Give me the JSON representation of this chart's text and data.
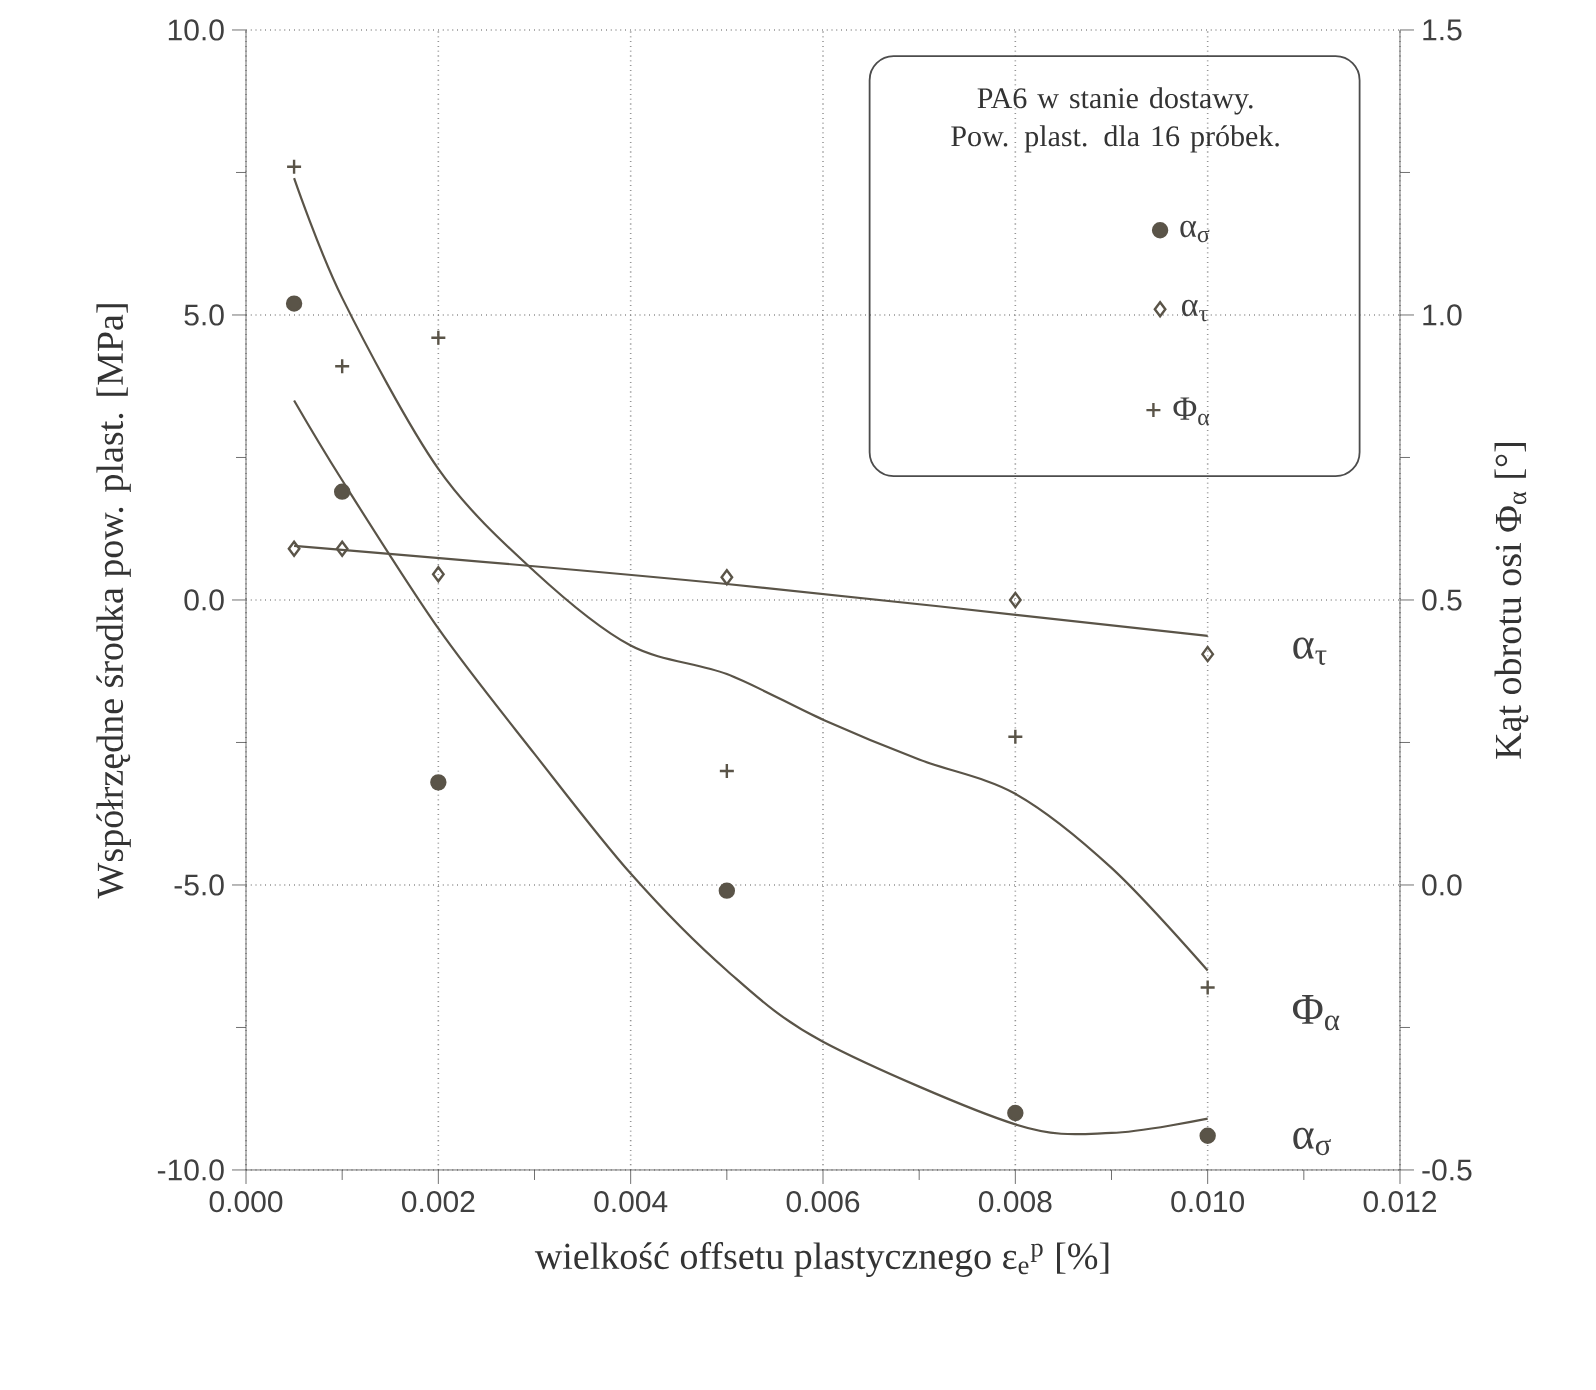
{
  "chart_data": {
    "type": "scatter",
    "xlabel": "wielkość offsetu plastycznego ε$_{e}$$^{p}$ [%]",
    "ylabel": "Współrzędne środka pow. plast. [MPa]",
    "y2label": "Kąt obrotu osi Φ$_{α}$ [°]",
    "legend_title": "PA6 w stanie dostawy. Pow. plast. dla 16 próbek.",
    "legend": "top right",
    "grid": true,
    "xlim": [
      0,
      0.012
    ],
    "xticks": [
      {
        "value": 0,
        "label": "0.000"
      },
      {
        "value": 0.002,
        "label": "0.002"
      },
      {
        "value": 0.004,
        "label": "0.004"
      },
      {
        "value": 0.006,
        "label": "0.006"
      },
      {
        "value": 0.008,
        "label": "0.008"
      },
      {
        "value": 0.01,
        "label": "0.010"
      },
      {
        "value": 0.012,
        "label": "0.012"
      }
    ],
    "ylim": [
      -10,
      10
    ],
    "yticks": [
      {
        "value": -10,
        "label": "-10.0"
      },
      {
        "value": -5,
        "label": "-5.0"
      },
      {
        "value": 0,
        "label": "0.0"
      },
      {
        "value": 5,
        "label": "5.0"
      },
      {
        "value": 10,
        "label": "10.0"
      }
    ],
    "y2lim": [
      -0.5,
      1.5
    ],
    "y2ticks": [
      -0.5,
      {
        "value": 0,
        "label": "0.0"
      },
      0.5,
      {
        "value": 1,
        "label": "1.0"
      },
      1.5
    ],
    "series": [
      {
        "name": "α$_{σ}$",
        "marker": "circle",
        "color": "#5a5448",
        "x": [
          0.0005,
          0.001,
          0.002,
          0.005,
          0.008,
          0.01
        ],
        "values": [
          5.2,
          1.9,
          -3.2,
          -5.1,
          -9.0,
          -9.4
        ]
      },
      {
        "name": "α$_{τ}$",
        "marker": "diamond",
        "color": "#5a5448",
        "x": [
          0.0005,
          0.001,
          0.002,
          0.005,
          0.008,
          0.01
        ],
        "values": [
          0.9,
          0.9,
          0.45,
          0.4,
          0.0,
          -0.95
        ]
      },
      {
        "name": "Φ$_{α}$",
        "marker": "cross",
        "axis": "y2",
        "color": "#5a5448",
        "x": [
          0.0005,
          0.001,
          0.002,
          0.005,
          0.008,
          0.01
        ],
        "values": [
          1.26,
          0.91,
          0.96,
          0.2,
          0.26,
          -0.18
        ]
      },
      {
        "type": "line",
        "marker": "none",
        "color": "#5a5448",
        "x": [
          0.0005,
          0.001,
          0.002,
          0.003,
          0.004,
          0.005,
          0.006,
          0.008,
          0.009,
          0.01
        ],
        "values": [
          3.5,
          2.1,
          -0.5,
          -2.7,
          -4.8,
          -6.5,
          -7.75,
          -9.2,
          -9.35,
          -9.1
        ]
      },
      {
        "type": "line",
        "marker": "none",
        "color": "#5a5448",
        "x": [
          0.0005,
          0.005,
          0.01
        ],
        "values": [
          0.95,
          0.28,
          -0.63
        ]
      },
      {
        "type": "line",
        "marker": "none",
        "axis": "y2",
        "color": "#5a5448",
        "x": [
          0.0005,
          0.001,
          0.002,
          0.003,
          0.004,
          0.005,
          0.006,
          0.007,
          0.008,
          0.009,
          0.01
        ],
        "values": [
          1.24,
          1.03,
          0.73,
          0.55,
          0.42,
          0.37,
          0.29,
          0.22,
          0.16,
          0.03,
          -0.15
        ]
      }
    ],
    "annotations": [
      "α$_{τ}$",
      "Φ$_{α}$",
      "α$_{σ}$"
    ]
  }
}
